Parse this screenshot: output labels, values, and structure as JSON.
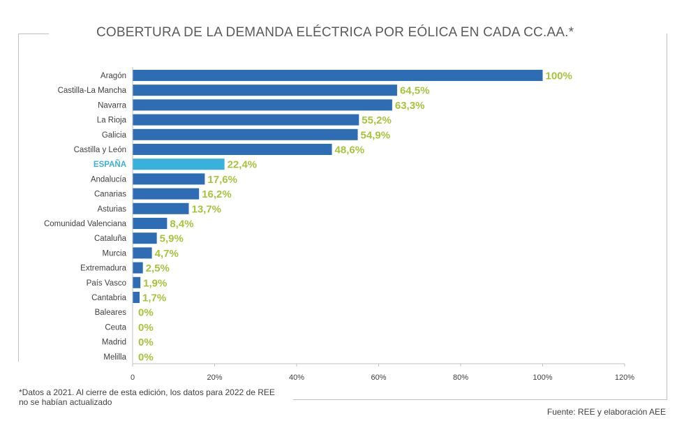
{
  "chart_data": {
    "type": "bar",
    "orientation": "horizontal",
    "title": "COBERTURA DE LA DEMANDA ELÉCTRICA POR EÓLICA EN CADA CC.AA.*",
    "categories": [
      "Aragón",
      "Castilla-La Mancha",
      "Navarra",
      "La Rioja",
      "Galicia",
      "Castilla y León",
      "ESPAÑA",
      "Andalucía",
      "Canarias",
      "Asturias",
      "Comunidad Valenciana",
      "Cataluña",
      "Murcia",
      "Extremadura",
      "País Vasco",
      "Cantabria",
      "Baleares",
      "Ceuta",
      "Madrid",
      "Melilla"
    ],
    "values": [
      100,
      64.5,
      63.3,
      55.2,
      54.9,
      48.6,
      22.4,
      17.6,
      16.2,
      13.7,
      8.4,
      5.9,
      4.7,
      2.5,
      1.9,
      1.7,
      0,
      0,
      0,
      0
    ],
    "value_labels": [
      "100%",
      "64,5%",
      "63,3%",
      "55,2%",
      "54,9%",
      "48,6%",
      "22,4%",
      "17,6%",
      "16,2%",
      "13,7%",
      "8,4%",
      "5,9%",
      "4,7%",
      "2,5%",
      "1,9%",
      "1,7%",
      "0%",
      "0%",
      "0%",
      "0%"
    ],
    "highlight_category": "ESPAÑA",
    "x_ticks": [
      "0",
      "20%",
      "40%",
      "60%",
      "80%",
      "100%",
      "120%"
    ],
    "xlim": [
      0,
      120
    ],
    "grid": false,
    "colors": {
      "bar": "#2e6db4",
      "highlight_bar": "#3ab0dc",
      "value_label": "#a6c43b",
      "highlight_label": "#3ab0dc"
    }
  },
  "footnote": "*Datos a 2021. Al cierre de esta edición, los datos para 2022 de REE no se habían actualizado",
  "source": "Fuente: REE y elaboración AEE"
}
